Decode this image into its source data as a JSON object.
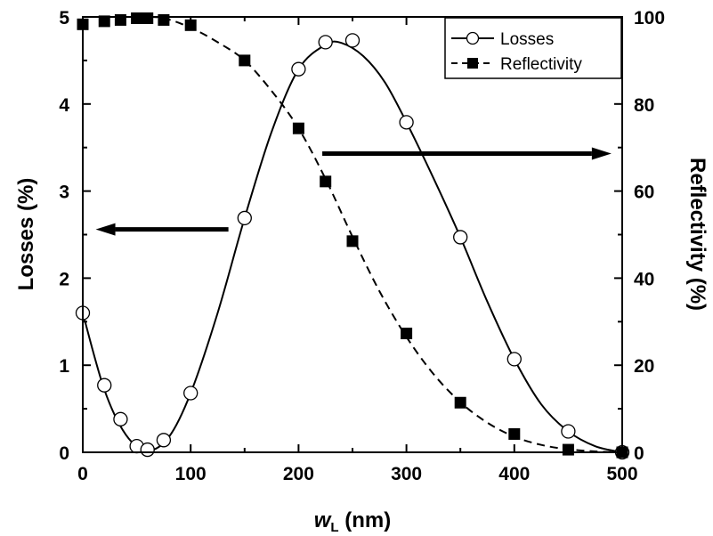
{
  "chart_data": {
    "type": "line",
    "x_axis": {
      "label_main": "w",
      "label_sub": "L",
      "label_rest": " (nm)",
      "min": 0,
      "max": 500,
      "ticks": [
        0,
        100,
        200,
        300,
        400,
        500
      ],
      "minor_step": 50
    },
    "y_left_axis": {
      "label": "Losses (%)",
      "min": 0,
      "max": 5,
      "ticks": [
        0,
        1,
        2,
        3,
        4,
        5
      ],
      "minor_step": 0.5
    },
    "y_right_axis": {
      "label": "Reflectivity (%)",
      "min": 0,
      "max": 100,
      "ticks": [
        0,
        20,
        40,
        60,
        80,
        100
      ],
      "minor_step": 10
    },
    "grid": false,
    "legend_position": "top-right",
    "series": [
      {
        "name": "Losses",
        "axis": "left",
        "marker": "open-circle",
        "line_style": "solid",
        "points": [
          {
            "x": 0,
            "y": 1.6
          },
          {
            "x": 20,
            "y": 0.77
          },
          {
            "x": 35,
            "y": 0.38
          },
          {
            "x": 50,
            "y": 0.07
          },
          {
            "x": 60,
            "y": 0.03
          },
          {
            "x": 75,
            "y": 0.14
          },
          {
            "x": 100,
            "y": 0.68
          },
          {
            "x": 150,
            "y": 2.69
          },
          {
            "x": 200,
            "y": 4.4
          },
          {
            "x": 225,
            "y": 4.71
          },
          {
            "x": 250,
            "y": 4.73
          },
          {
            "x": 300,
            "y": 3.79
          },
          {
            "x": 350,
            "y": 2.47
          },
          {
            "x": 400,
            "y": 1.07
          },
          {
            "x": 450,
            "y": 0.24
          },
          {
            "x": 500,
            "y": 0.0
          }
        ],
        "fit_curve": [
          {
            "x": 0,
            "y": 1.6
          },
          {
            "x": 20,
            "y": 0.72
          },
          {
            "x": 40,
            "y": 0.2
          },
          {
            "x": 60,
            "y": 0.02
          },
          {
            "x": 80,
            "y": 0.18
          },
          {
            "x": 100,
            "y": 0.68
          },
          {
            "x": 125,
            "y": 1.6
          },
          {
            "x": 150,
            "y": 2.69
          },
          {
            "x": 175,
            "y": 3.68
          },
          {
            "x": 200,
            "y": 4.4
          },
          {
            "x": 225,
            "y": 4.68
          },
          {
            "x": 240,
            "y": 4.7
          },
          {
            "x": 260,
            "y": 4.55
          },
          {
            "x": 280,
            "y": 4.25
          },
          {
            "x": 300,
            "y": 3.79
          },
          {
            "x": 325,
            "y": 3.15
          },
          {
            "x": 350,
            "y": 2.47
          },
          {
            "x": 375,
            "y": 1.73
          },
          {
            "x": 400,
            "y": 1.07
          },
          {
            "x": 425,
            "y": 0.55
          },
          {
            "x": 450,
            "y": 0.24
          },
          {
            "x": 475,
            "y": 0.07
          },
          {
            "x": 500,
            "y": 0.0
          }
        ]
      },
      {
        "name": "Reflectivity",
        "axis": "right",
        "marker": "filled-square",
        "line_style": "dashed",
        "points": [
          {
            "x": 0,
            "y": 98.3
          },
          {
            "x": 20,
            "y": 99.0
          },
          {
            "x": 35,
            "y": 99.3
          },
          {
            "x": 50,
            "y": 99.7
          },
          {
            "x": 60,
            "y": 99.7
          },
          {
            "x": 75,
            "y": 99.3
          },
          {
            "x": 100,
            "y": 98.1
          },
          {
            "x": 150,
            "y": 90.0
          },
          {
            "x": 200,
            "y": 74.4
          },
          {
            "x": 225,
            "y": 62.2
          },
          {
            "x": 250,
            "y": 48.5
          },
          {
            "x": 300,
            "y": 27.3
          },
          {
            "x": 350,
            "y": 11.4
          },
          {
            "x": 400,
            "y": 4.2
          },
          {
            "x": 450,
            "y": 0.6
          },
          {
            "x": 500,
            "y": 0.0
          }
        ],
        "fit_curve": [
          {
            "x": 0,
            "y": 100
          },
          {
            "x": 50,
            "y": 100
          },
          {
            "x": 75,
            "y": 99.7
          },
          {
            "x": 100,
            "y": 97.5
          },
          {
            "x": 125,
            "y": 94.2
          },
          {
            "x": 150,
            "y": 90.0
          },
          {
            "x": 175,
            "y": 83.0
          },
          {
            "x": 200,
            "y": 74.4
          },
          {
            "x": 225,
            "y": 62.8
          },
          {
            "x": 250,
            "y": 49.5
          },
          {
            "x": 275,
            "y": 37.0
          },
          {
            "x": 300,
            "y": 26.5
          },
          {
            "x": 325,
            "y": 18.0
          },
          {
            "x": 350,
            "y": 11.5
          },
          {
            "x": 375,
            "y": 6.8
          },
          {
            "x": 400,
            "y": 3.6
          },
          {
            "x": 425,
            "y": 1.7
          },
          {
            "x": 450,
            "y": 0.7
          },
          {
            "x": 475,
            "y": 0.2
          },
          {
            "x": 500,
            "y": 0.0
          }
        ]
      }
    ],
    "annotations": [
      {
        "type": "arrow",
        "points_to": "left-axis",
        "x_start": 135,
        "x_end": 12,
        "y": 2.56,
        "y_axis": "left"
      },
      {
        "type": "arrow",
        "points_to": "right-axis",
        "x_start": 222,
        "x_end": 490,
        "y": 3.43,
        "y_axis": "left"
      }
    ]
  }
}
